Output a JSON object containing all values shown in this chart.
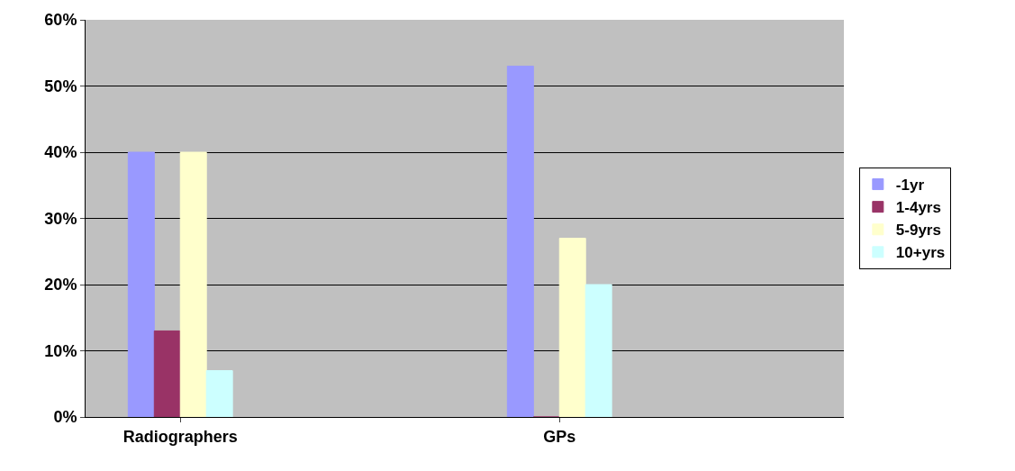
{
  "chart_data": {
    "type": "bar",
    "categories": [
      "Radiographers",
      null,
      "GPs",
      null
    ],
    "series": [
      {
        "name": "-1yr",
        "color": "#9999ff",
        "values": [
          40,
          null,
          53,
          null
        ]
      },
      {
        "name": "1-4yrs",
        "color": "#993366",
        "values": [
          13,
          null,
          0,
          null
        ]
      },
      {
        "name": "5-9yrs",
        "color": "#ffffcc",
        "values": [
          40,
          null,
          27,
          null
        ]
      },
      {
        "name": "10+yrs",
        "color": "#ccffff",
        "values": [
          7,
          null,
          20,
          null
        ]
      }
    ],
    "ylim": [
      0,
      60
    ],
    "yticks": [
      {
        "value": 0,
        "label": "0%"
      },
      {
        "value": 10,
        "label": "10%"
      },
      {
        "value": 20,
        "label": "20%"
      },
      {
        "value": 30,
        "label": "30%"
      },
      {
        "value": 40,
        "label": "40%"
      },
      {
        "value": 50,
        "label": "50%"
      },
      {
        "value": 60,
        "label": "60%"
      }
    ],
    "grid": "y",
    "legend": "right"
  }
}
